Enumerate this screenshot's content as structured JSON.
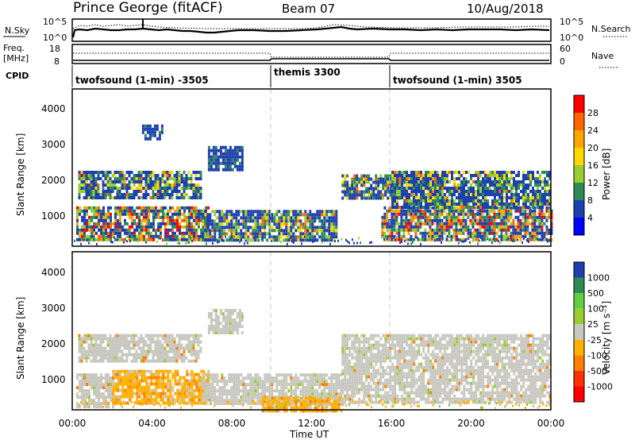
{
  "header": {
    "station": "Prince George (fitACF)",
    "beam": "Beam 07",
    "date": "10/Aug/2018"
  },
  "summary_panels": {
    "nsky": {
      "left_label": "N.Sky",
      "left_ticks": [
        "10^5",
        "10^0"
      ],
      "right_ticks": [
        "10^5",
        "10^0"
      ],
      "right_label": "N.Search"
    },
    "freq": {
      "left_label_line1": "Freq.",
      "left_label_line2": "[MHz]",
      "left_ticks": [
        "18",
        "8"
      ],
      "right_ticks": [
        "60",
        "0"
      ],
      "right_label": "Nave"
    },
    "cpid": {
      "label": "CPID",
      "segments": [
        {
          "name": "twofsound (1-min) -3505",
          "start": "00:00",
          "end": "10:00"
        },
        {
          "name": "themis 3300",
          "start": "10:00",
          "end": "16:00"
        },
        {
          "name": "twofsound (1-min) 3505",
          "start": "16:00",
          "end": "24:00"
        }
      ]
    }
  },
  "chart_data": [
    {
      "type": "heatmap",
      "title": "",
      "ylabel": "Slant Range [km]",
      "xlabel": "",
      "ylim": [
        180,
        4600
      ],
      "xlim": [
        "00:00",
        "24:00"
      ],
      "yticks": [
        "1000",
        "2000",
        "3000",
        "4000"
      ],
      "colorbar": {
        "label": "Power [dB]",
        "ticks": [
          "28",
          "24",
          "20",
          "16",
          "12",
          "8",
          "4"
        ],
        "colors": [
          "#ff0000",
          "#ff6600",
          "#ffa500",
          "#ffd700",
          "#9acd32",
          "#2e8b57",
          "#1e3fb0",
          "#0000ff"
        ]
      },
      "regions": [
        {
          "t0": 0.3,
          "t1": 6.5,
          "r0": 1550,
          "r1": 2300,
          "level": "mid"
        },
        {
          "t0": 0.2,
          "t1": 6.8,
          "r0": 350,
          "r1": 1300,
          "level": "high"
        },
        {
          "t0": 6.5,
          "t1": 13.2,
          "r0": 350,
          "r1": 1200,
          "level": "mid"
        },
        {
          "t0": 3.5,
          "t1": 4.5,
          "r0": 3200,
          "r1": 3600,
          "level": "low"
        },
        {
          "t0": 6.8,
          "t1": 8.5,
          "r0": 2300,
          "r1": 3000,
          "level": "low"
        },
        {
          "t0": 13.5,
          "t1": 18.5,
          "r0": 1500,
          "r1": 2200,
          "level": "mid"
        },
        {
          "t0": 15.5,
          "t1": 24.0,
          "r0": 350,
          "r1": 1300,
          "level": "high"
        },
        {
          "t0": 16.0,
          "t1": 24.0,
          "r0": 1300,
          "r1": 2300,
          "level": "mid"
        }
      ]
    },
    {
      "type": "heatmap",
      "title": "",
      "ylabel": "Slant Range [km]",
      "xlabel": "Time UT",
      "ylim": [
        180,
        4600
      ],
      "xlim": [
        "00:00",
        "24:00"
      ],
      "xticks": [
        "00:00",
        "04:00",
        "08:00",
        "12:00",
        "16:00",
        "20:00",
        "00:00"
      ],
      "yticks": [
        "1000",
        "2000",
        "3000",
        "4000"
      ],
      "colorbar": {
        "label": "Velocity [m s⁻¹]",
        "ticks": [
          "1000",
          "500",
          "100",
          "25",
          "-25",
          "-100",
          "-500",
          "-1000"
        ],
        "colors": [
          "#1e3fb0",
          "#2e8b57",
          "#5fcf3f",
          "#9acd32",
          "#c8c8c0",
          "#ffb000",
          "#ff7f00",
          "#ff3000",
          "#ff0000"
        ]
      },
      "regions": [
        {
          "t0": 0.3,
          "t1": 6.5,
          "r0": 1550,
          "r1": 2300,
          "level": "gray"
        },
        {
          "t0": 0.2,
          "t1": 2.0,
          "r0": 300,
          "r1": 1200,
          "level": "gray"
        },
        {
          "t0": 2.0,
          "t1": 6.8,
          "r0": 400,
          "r1": 1300,
          "level": "orange"
        },
        {
          "t0": 6.5,
          "t1": 13.5,
          "r0": 350,
          "r1": 1200,
          "level": "gray"
        },
        {
          "t0": 9.5,
          "t1": 13.5,
          "r0": 180,
          "r1": 550,
          "level": "orange"
        },
        {
          "t0": 13.5,
          "t1": 24.0,
          "r0": 350,
          "r1": 2300,
          "level": "gray"
        },
        {
          "t0": 6.8,
          "t1": 8.5,
          "r0": 2300,
          "r1": 3000,
          "level": "gray"
        }
      ]
    }
  ]
}
